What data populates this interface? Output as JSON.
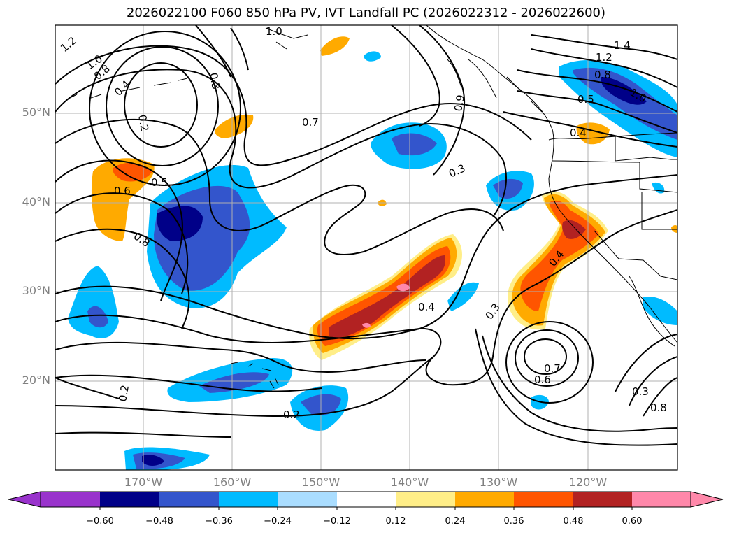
{
  "title": "2026022100 F060 850 hPa PV, IVT Landfall PC (2026022312 - 2026022600)",
  "lat_labels": [
    "50°N",
    "40°N",
    "30°N",
    "20°N"
  ],
  "lon_labels": [
    "170°W",
    "160°W",
    "150°W",
    "140°W",
    "130°W",
    "120°W"
  ],
  "colorbar": {
    "ticks": [
      "−0.60",
      "−0.48",
      "−0.36",
      "−0.24",
      "−0.12",
      "0.12",
      "0.24",
      "0.36",
      "0.48",
      "0.60"
    ],
    "colors": [
      "#9933cc",
      "#000088",
      "#3355cc",
      "#00bbff",
      "#aaddff",
      "#ffffff",
      "#ffee88",
      "#ffaa00",
      "#ff5500",
      "#b22222",
      "#ff88aa"
    ]
  },
  "contour_labels": [
    "1.2",
    "1.0",
    "0.8",
    "0.4",
    "0.2",
    "0.3",
    "1.0",
    "0.7",
    "0.6",
    "0.5",
    "0.8",
    "0.9",
    "0.3",
    "1.4",
    "1.2",
    "0.8",
    "1.0",
    "0.5",
    "0.4",
    "0.4",
    "0.4",
    "0.3",
    "0.7",
    "0.6",
    "0.2",
    "0.2",
    "0.3",
    "0.8"
  ]
}
